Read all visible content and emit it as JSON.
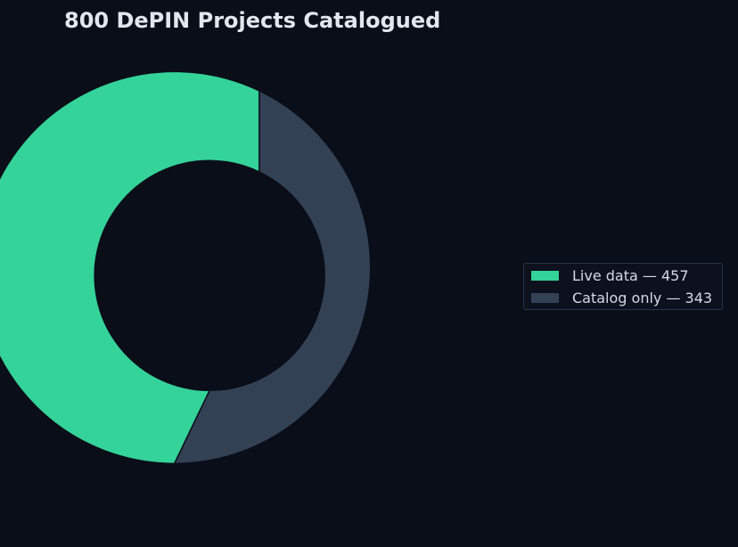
{
  "chart_data": {
    "type": "pie",
    "variant": "donut",
    "title": "800 DePIN Projects Catalogued",
    "slices": [
      {
        "label": "Live data",
        "value": 457,
        "color": "#34d399"
      },
      {
        "label": "Catalog only",
        "value": 343,
        "color": "#334155"
      }
    ],
    "legend": {
      "placement": "right",
      "entries": [
        "Live data — 457",
        "Catalog only — 343"
      ]
    },
    "start": "top",
    "direction": "counterclockwise"
  },
  "colors": {
    "background": "#0a0e19",
    "slice_edge": "#0a0e19"
  }
}
